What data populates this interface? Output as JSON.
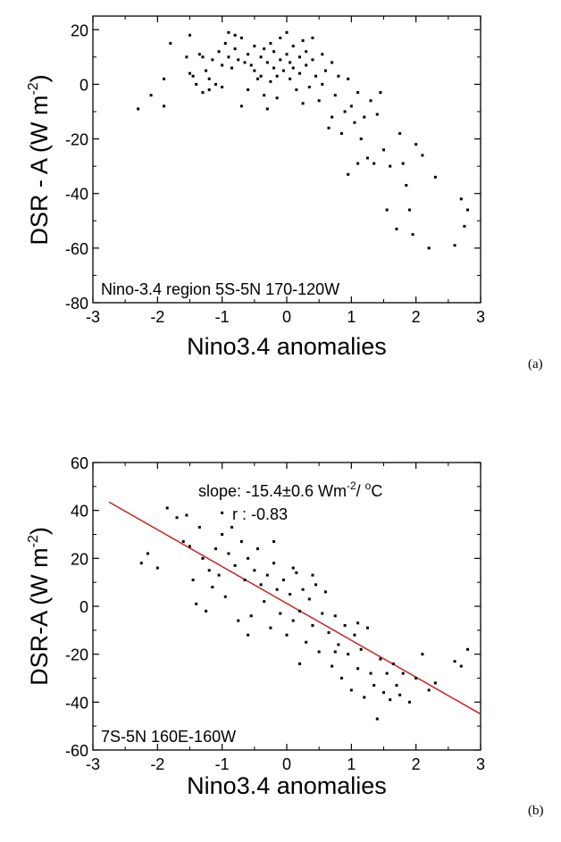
{
  "chart_data": [
    {
      "type": "scatter",
      "panel_label": "(a)",
      "xlabel": "Nino3.4 anomalies",
      "ylabel_main": "DSR - A (W m",
      "ylabel_sup": "-2",
      "ylabel_close": ")",
      "xlim": [
        -3,
        3
      ],
      "ylim": [
        -80,
        25
      ],
      "xticks": [
        -3,
        -2,
        -1,
        0,
        1,
        2,
        3
      ],
      "xtick_labels": [
        "-3",
        "-2",
        "-1",
        "0",
        "1",
        "2",
        "3"
      ],
      "yticks": [
        -80,
        -60,
        -40,
        -20,
        0,
        20
      ],
      "ytick_labels": [
        "-80",
        "-60",
        "-40",
        "-20",
        "0",
        "20"
      ],
      "annotation": "Nino-3.4 region 5S-5N  170-120W",
      "grid": false,
      "points": [
        [
          -2.3,
          -9
        ],
        [
          -2.1,
          -4
        ],
        [
          -1.9,
          -8
        ],
        [
          -1.9,
          2
        ],
        [
          -1.8,
          15
        ],
        [
          -1.55,
          10
        ],
        [
          -1.5,
          18
        ],
        [
          -1.5,
          4
        ],
        [
          -1.45,
          3
        ],
        [
          -1.4,
          0
        ],
        [
          -1.35,
          11
        ],
        [
          -1.3,
          -3
        ],
        [
          -1.3,
          10
        ],
        [
          -1.25,
          5
        ],
        [
          -1.2,
          -2
        ],
        [
          -1.2,
          2
        ],
        [
          -1.15,
          9
        ],
        [
          -1.1,
          0
        ],
        [
          -1.05,
          12
        ],
        [
          -1.0,
          7
        ],
        [
          -1.0,
          -1
        ],
        [
          -0.95,
          15
        ],
        [
          -0.9,
          10
        ],
        [
          -0.9,
          19
        ],
        [
          -0.85,
          6
        ],
        [
          -0.8,
          18
        ],
        [
          -0.8,
          13
        ],
        [
          -0.75,
          9
        ],
        [
          -0.7,
          -8
        ],
        [
          -0.7,
          17
        ],
        [
          -0.65,
          8
        ],
        [
          -0.6,
          11
        ],
        [
          -0.6,
          -2
        ],
        [
          -0.55,
          7
        ],
        [
          -0.5,
          14
        ],
        [
          -0.5,
          5
        ],
        [
          -0.45,
          2
        ],
        [
          -0.4,
          10
        ],
        [
          -0.4,
          3
        ],
        [
          -0.35,
          13
        ],
        [
          -0.35,
          -4
        ],
        [
          -0.3,
          -9
        ],
        [
          -0.3,
          8
        ],
        [
          -0.25,
          1
        ],
        [
          -0.25,
          15
        ],
        [
          -0.2,
          6
        ],
        [
          -0.2,
          12
        ],
        [
          -0.15,
          3
        ],
        [
          -0.1,
          9
        ],
        [
          -0.1,
          17
        ],
        [
          -0.05,
          5
        ],
        [
          0.0,
          11
        ],
        [
          0.0,
          19
        ],
        [
          0.05,
          2
        ],
        [
          0.05,
          8
        ],
        [
          0.1,
          14
        ],
        [
          0.1,
          6
        ],
        [
          0.15,
          -2
        ],
        [
          0.2,
          10
        ],
        [
          0.2,
          4
        ],
        [
          0.25,
          16
        ],
        [
          0.3,
          7
        ],
        [
          0.3,
          12
        ],
        [
          0.35,
          -1
        ],
        [
          0.4,
          9
        ],
        [
          0.4,
          17
        ],
        [
          0.45,
          3
        ],
        [
          0.5,
          -6
        ],
        [
          0.55,
          11
        ],
        [
          0.6,
          5
        ],
        [
          0.65,
          -16
        ],
        [
          0.7,
          8
        ],
        [
          0.75,
          -4
        ],
        [
          0.8,
          3
        ],
        [
          0.85,
          -18
        ],
        [
          0.9,
          -10
        ],
        [
          0.95,
          2
        ],
        [
          1.0,
          -8
        ],
        [
          1.05,
          -14
        ],
        [
          1.1,
          -3
        ],
        [
          1.15,
          -20
        ],
        [
          1.2,
          -12
        ],
        [
          1.25,
          -27
        ],
        [
          1.3,
          -6
        ],
        [
          1.35,
          -29
        ],
        [
          1.4,
          -11
        ],
        [
          1.45,
          -3
        ],
        [
          1.5,
          -24
        ],
        [
          1.55,
          -46
        ],
        [
          1.6,
          -30
        ],
        [
          1.7,
          -53
        ],
        [
          1.75,
          -18
        ],
        [
          1.8,
          -29
        ],
        [
          1.85,
          -37
        ],
        [
          1.9,
          -46
        ],
        [
          1.95,
          -55
        ],
        [
          2.0,
          -22
        ],
        [
          2.1,
          -26
        ],
        [
          2.2,
          -60
        ],
        [
          2.3,
          -34
        ],
        [
          2.6,
          -59
        ],
        [
          2.7,
          -42
        ],
        [
          2.8,
          -46
        ],
        [
          2.75,
          -52
        ],
        [
          0.95,
          -33
        ],
        [
          1.1,
          -29
        ],
        [
          0.7,
          -12
        ],
        [
          0.55,
          0
        ],
        [
          -0.15,
          -5
        ],
        [
          0.25,
          -7
        ]
      ]
    },
    {
      "type": "scatter",
      "panel_label": "(b)",
      "xlabel": "Nino3.4 anomalies",
      "ylabel_main": "DSR-A (W m",
      "ylabel_sup": "-2",
      "ylabel_close": ")",
      "xlim": [
        -3,
        3
      ],
      "ylim": [
        -60,
        60
      ],
      "xticks": [
        -3,
        -2,
        -1,
        0,
        1,
        2,
        3
      ],
      "xtick_labels": [
        "-3",
        "-2",
        "-1",
        "0",
        "1",
        "2",
        "3"
      ],
      "yticks": [
        -60,
        -40,
        -20,
        0,
        20,
        40,
        60
      ],
      "ytick_labels": [
        "-60",
        "-40",
        "-20",
        "0",
        "20",
        "40",
        "60"
      ],
      "annotation_slope_prefix": "slope: -15.4±0.6 Wm",
      "annotation_slope_sup": "-2",
      "annotation_slope_mid": "/ ",
      "annotation_slope_deg": "o",
      "annotation_slope_unit": "C",
      "annotation_r": "r : -0.83",
      "annotation_region": "7S-5N  160E-160W",
      "grid": false,
      "fit_line": {
        "x0": -2.75,
        "y0": 43.5,
        "x1": 3.0,
        "y1": -45.0,
        "color": "#e00000"
      },
      "points": [
        [
          -2.25,
          18
        ],
        [
          -2.15,
          22
        ],
        [
          -2.0,
          16
        ],
        [
          -1.85,
          41
        ],
        [
          -1.7,
          37
        ],
        [
          -1.6,
          27
        ],
        [
          -1.55,
          38
        ],
        [
          -1.5,
          25
        ],
        [
          -1.45,
          11
        ],
        [
          -1.4,
          1
        ],
        [
          -1.35,
          33
        ],
        [
          -1.3,
          20
        ],
        [
          -1.25,
          -2
        ],
        [
          -1.2,
          15
        ],
        [
          -1.15,
          8
        ],
        [
          -1.1,
          24
        ],
        [
          -1.05,
          13
        ],
        [
          -1.0,
          30
        ],
        [
          -0.95,
          4
        ],
        [
          -0.9,
          22
        ],
        [
          -0.85,
          33
        ],
        [
          -0.8,
          17
        ],
        [
          -0.75,
          -6
        ],
        [
          -0.7,
          27
        ],
        [
          -0.65,
          11
        ],
        [
          -0.6,
          20
        ],
        [
          -0.55,
          -4
        ],
        [
          -0.5,
          15
        ],
        [
          -0.45,
          24
        ],
        [
          -0.4,
          9
        ],
        [
          -0.35,
          2
        ],
        [
          -0.3,
          13
        ],
        [
          -0.25,
          -9
        ],
        [
          -0.2,
          18
        ],
        [
          -0.15,
          7
        ],
        [
          -0.1,
          -3
        ],
        [
          -0.05,
          11
        ],
        [
          0.0,
          -12
        ],
        [
          0.05,
          5
        ],
        [
          0.1,
          -6
        ],
        [
          0.15,
          14
        ],
        [
          0.2,
          -2
        ],
        [
          0.25,
          7
        ],
        [
          0.3,
          -15
        ],
        [
          0.35,
          3
        ],
        [
          0.4,
          -8
        ],
        [
          0.45,
          9
        ],
        [
          0.5,
          -19
        ],
        [
          0.55,
          -3
        ],
        [
          0.6,
          6
        ],
        [
          0.65,
          -11
        ],
        [
          0.7,
          -25
        ],
        [
          0.75,
          -4
        ],
        [
          0.8,
          -16
        ],
        [
          0.85,
          -30
        ],
        [
          0.9,
          -8
        ],
        [
          0.95,
          -20
        ],
        [
          1.0,
          -35
        ],
        [
          1.05,
          -12
        ],
        [
          1.1,
          -26
        ],
        [
          1.15,
          -18
        ],
        [
          1.2,
          -38
        ],
        [
          1.25,
          -9
        ],
        [
          1.3,
          -28
        ],
        [
          1.35,
          -33
        ],
        [
          1.4,
          -47
        ],
        [
          1.45,
          -22
        ],
        [
          1.5,
          -36
        ],
        [
          1.55,
          -28
        ],
        [
          1.6,
          -39
        ],
        [
          1.65,
          -24
        ],
        [
          1.7,
          -33
        ],
        [
          1.75,
          -37
        ],
        [
          1.8,
          -28
        ],
        [
          1.9,
          -40
        ],
        [
          2.0,
          -30
        ],
        [
          2.1,
          -20
        ],
        [
          2.2,
          -35
        ],
        [
          2.3,
          -32
        ],
        [
          2.6,
          -23
        ],
        [
          2.7,
          -25
        ],
        [
          2.8,
          -18
        ],
        [
          -0.2,
          27
        ],
        [
          0.1,
          16
        ],
        [
          0.4,
          13
        ],
        [
          -0.6,
          -12
        ],
        [
          0.2,
          -24
        ],
        [
          0.75,
          -19
        ],
        [
          1.1,
          -7
        ],
        [
          -1.0,
          39
        ]
      ]
    }
  ]
}
